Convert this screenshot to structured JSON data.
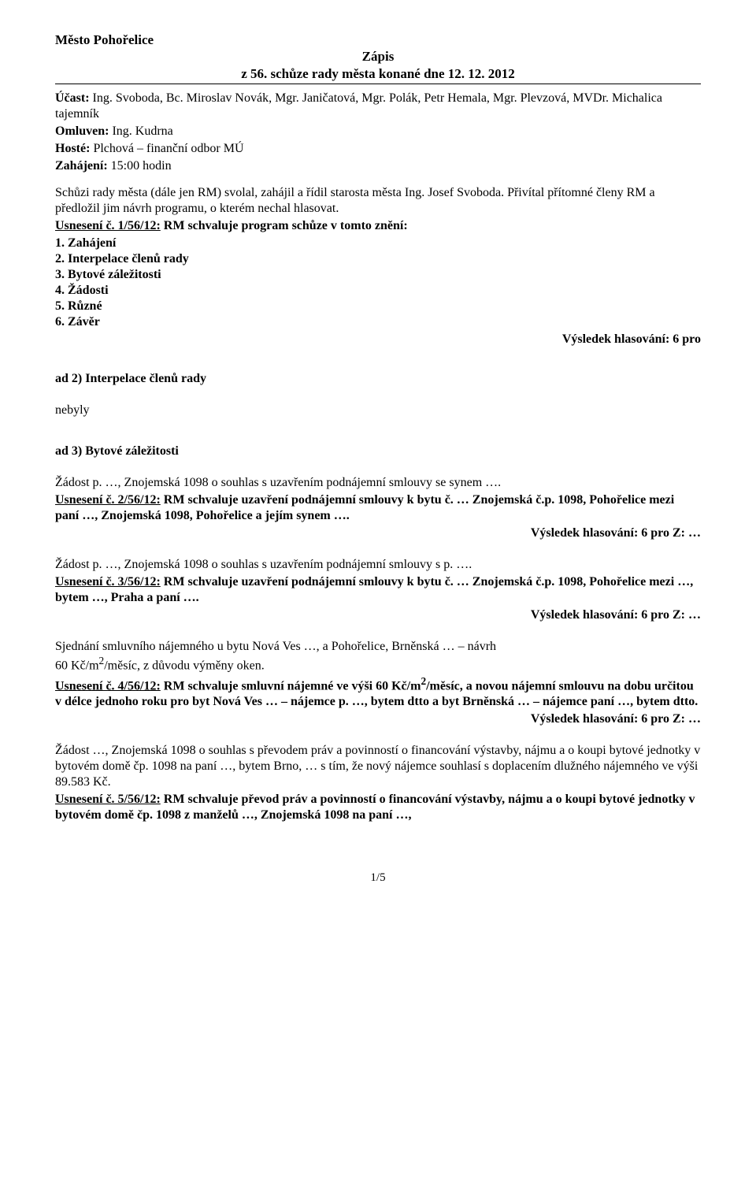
{
  "header": {
    "org": "Město Pohořelice",
    "title": "Zápis",
    "subtitle": "z 56. schůze rady města konané dne 12. 12. 2012"
  },
  "attendance": {
    "ucast_label": "Účast:",
    "ucast_text": " Ing. Svoboda, Bc. Miroslav Novák, Mgr. Janičatová, Mgr. Polák, Petr Hemala, Mgr. Plevzová, MVDr. Michalica tajemník",
    "omluven_label": "Omluven:",
    "omluven_text": " Ing. Kudrna",
    "hoste_label": "Hosté:",
    "hoste_text": "  Plchová – finanční odbor MÚ",
    "zahajeni_label": "Zahájení:",
    "zahajeni_text": " 15:00 hodin"
  },
  "intro": "Schůzi rady města (dále jen RM) svolal, zahájil a řídil starosta města Ing. Josef Svoboda. Přivítal přítomné členy RM a předložil jim návrh programu, o kterém nechal hlasovat.",
  "usneseni1": {
    "label": "Usnesení č. 1/56/12:",
    "text": " RM schvaluje program schůze v tomto znění:"
  },
  "agenda": [
    "1.   Zahájení",
    "2.   Interpelace členů rady",
    "3.   Bytové záležitosti",
    "4.   Žádosti",
    "5.   Různé",
    "6.   Závěr"
  ],
  "vote_6pro": "Výsledek hlasování: 6 pro",
  "ad2": {
    "heading": "ad 2)  Interpelace členů rady",
    "body": "nebyly"
  },
  "ad3": {
    "heading": "ad 3) Bytové záležitosti"
  },
  "block1": {
    "line1": "Žádost p. …, Znojemská 1098 o souhlas s uzavřením podnájemní smlouvy se synem ….",
    "usn_label": "Usnesení č. 2/56/12:",
    "usn_text": " RM schvaluje uzavření podnájemní smlouvy k bytu č. … Znojemská č.p. 1098, Pohořelice mezi paní …, Znojemská 1098, Pohořelice a jejím synem ….",
    "vote": "Výsledek hlasování: 6 pro Z: …"
  },
  "block2": {
    "line1": "Žádost p. …, Znojemská 1098 o souhlas s uzavřením podnájemní smlouvy s p. ….",
    "usn_label": "Usnesení č. 3/56/12:",
    "usn_text": " RM schvaluje uzavření podnájemní smlouvy k bytu č. … Znojemská č.p. 1098, Pohořelice mezi …, bytem …, Praha a paní ….",
    "vote": "Výsledek hlasování: 6 pro Z: …"
  },
  "block3": {
    "line1": "Sjednání smluvního nájemného u bytu Nová Ves …,  a Pohořelice, Brněnská … – návrh ",
    "line2a": "60 Kč/m",
    "line2b": "/měsíc, z důvodu výměny oken.",
    "sup2": "2",
    "usn_label": "Usnesení č. 4/56/12:",
    "usn_text_a": " RM schvaluje smluvní nájemné ve výši 60 Kč/m",
    "usn_text_b": "/měsíc, a novou nájemní smlouvu na dobu určitou v délce jednoho roku pro byt Nová Ves … – nájemce p. …, bytem dtto a byt Brněnská … – nájemce paní …, bytem dtto.",
    "vote": "Výsledek hlasování: 6 pro Z: …"
  },
  "block4": {
    "line1": "Žádost …, Znojemská 1098 o souhlas s převodem práv a povinností o financování výstavby, nájmu a o koupi bytové jednotky v bytovém domě čp. 1098 na paní …, bytem Brno, … s tím, že nový nájemce souhlasí s doplacením dlužného nájemného ve výši 89.583 Kč.",
    "usn_label": "Usnesení č. 5/56/12:",
    "usn_text": "  RM schvaluje převod práv a povinností o financování výstavby, nájmu a o koupi bytové jednotky v bytovém domě čp. 1098 z manželů …, Znojemská 1098 na paní …,"
  },
  "page_num": "1/5"
}
